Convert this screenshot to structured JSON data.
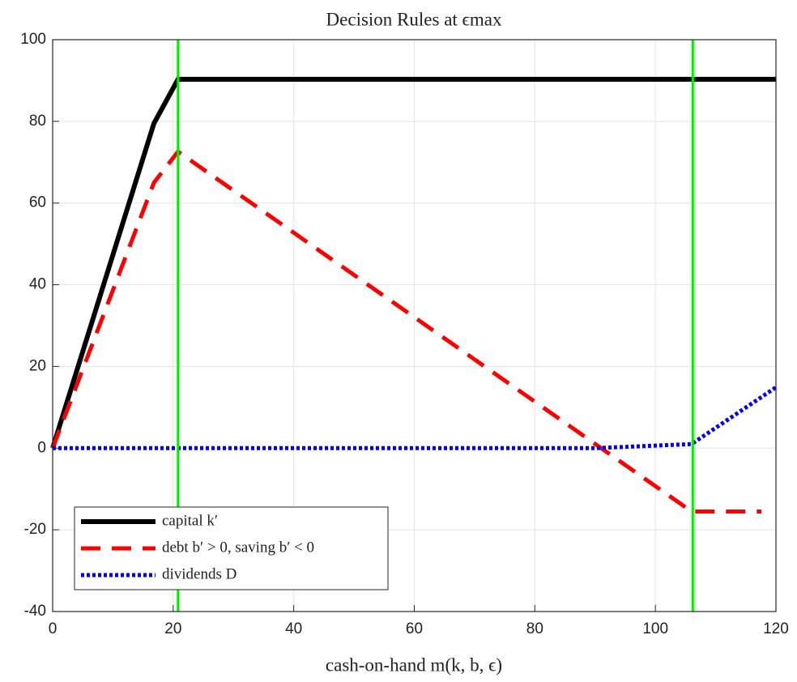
{
  "chart_data": {
    "type": "line",
    "title": "Decision Rules at ϵmax",
    "x_label": "cash-on-hand m(k, b, ϵ)",
    "xlim": [
      0,
      120
    ],
    "xticks": [
      0,
      20,
      40,
      60,
      80,
      100,
      120
    ],
    "ylim": [
      -40,
      100
    ],
    "yticks": [
      -40,
      -20,
      0,
      20,
      40,
      60,
      80,
      100
    ],
    "grid": true,
    "legend": "lower left",
    "vlines": {
      "color": "#00ee00",
      "x": [
        20.8,
        106.2
      ]
    },
    "series": [
      {
        "name": "capital k′",
        "color": "#000000",
        "style": "solid",
        "x": [
          0,
          16.8,
          20.8,
          120
        ],
        "values": [
          0,
          79.5,
          90.3,
          90.3
        ]
      },
      {
        "name": "debt b′ > 0, saving b′ < 0",
        "color": "#ff0000",
        "style": "dashed",
        "x": [
          0,
          16.8,
          20.8,
          106,
          117.6
        ],
        "values": [
          0,
          65,
          72.6,
          -15.5,
          -15.5
        ]
      },
      {
        "name": "dividends D",
        "color": "#0000ee",
        "style": "dotted",
        "x": [
          0,
          90,
          106,
          120
        ],
        "values": [
          0,
          0,
          1,
          14.9
        ]
      }
    ]
  }
}
